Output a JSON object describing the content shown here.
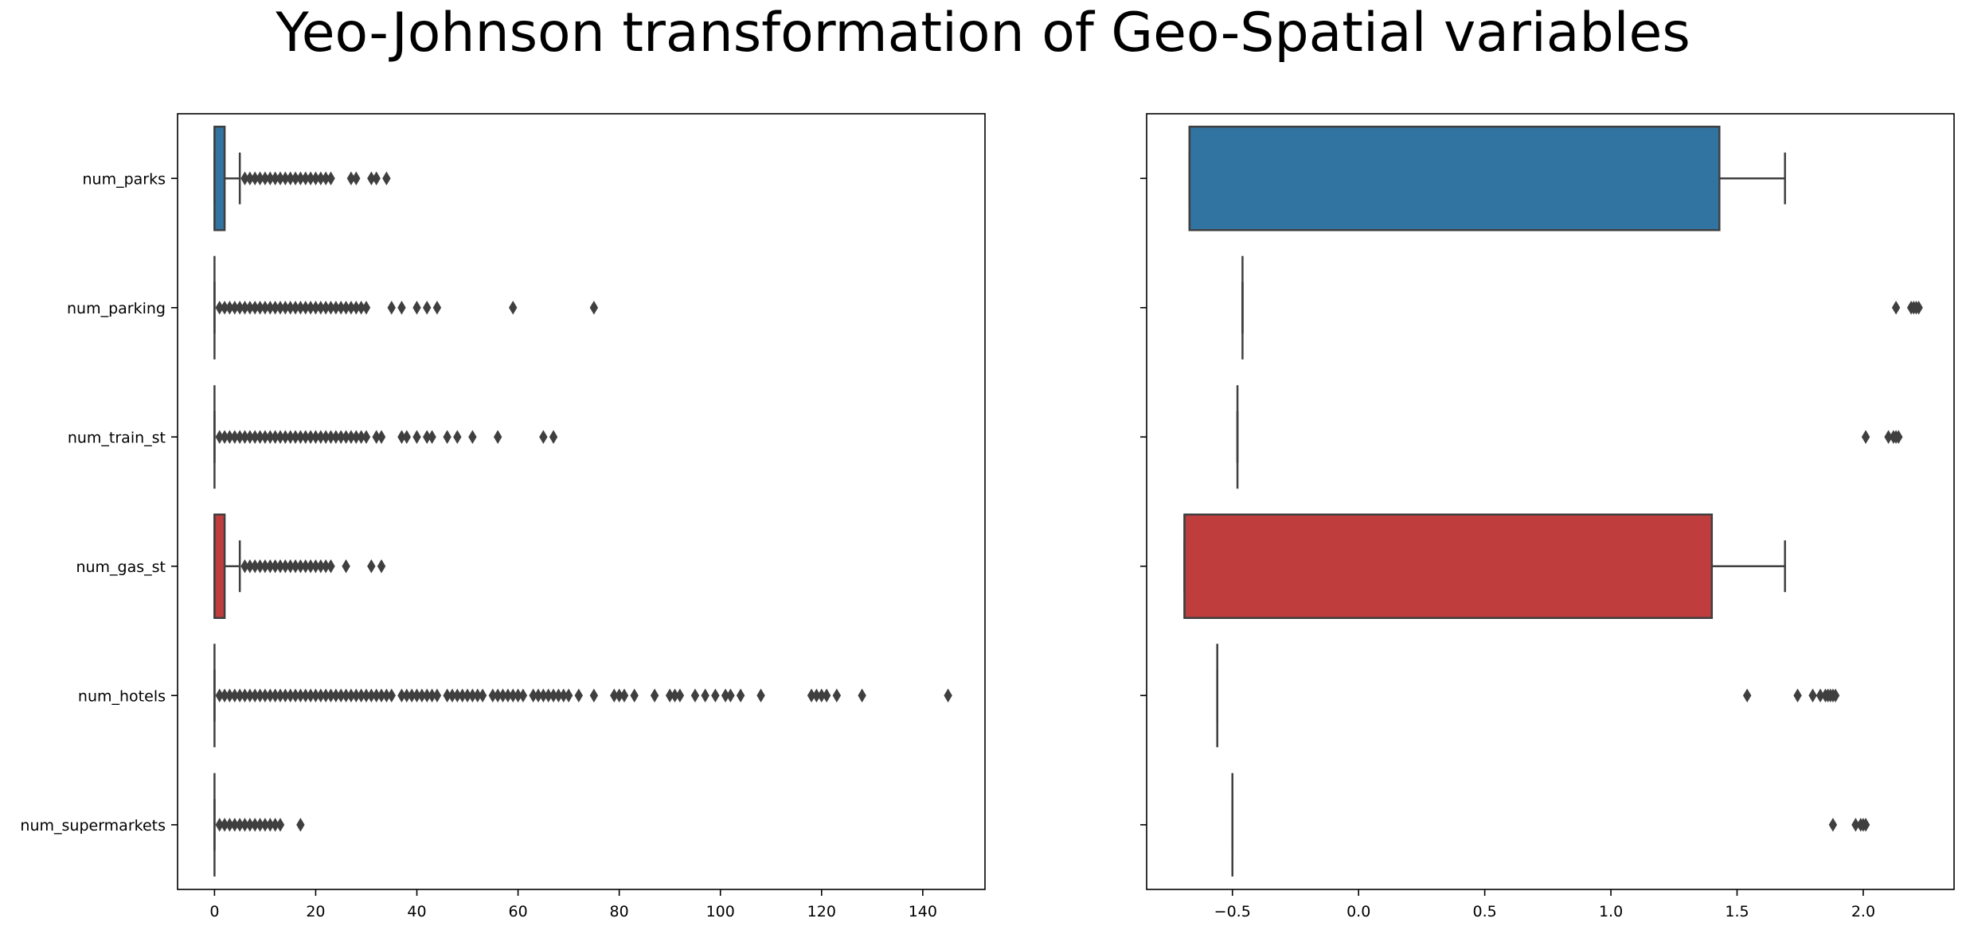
{
  "title": "Yeo-Johnson transformation of Geo-Spatial variables",
  "colors": {
    "num_parks": "#3274a1",
    "num_gas_st": "#c03d3e",
    "line": "#3f3f3f"
  },
  "chart_data": [
    {
      "type": "box",
      "orientation": "horizontal",
      "title": "",
      "xlabel": "",
      "ylabel": "",
      "xlim": [
        -7.3,
        152.3
      ],
      "xticks": [
        0,
        20,
        40,
        60,
        80,
        100,
        120,
        140
      ],
      "xtick_labels": [
        "0",
        "20",
        "40",
        "60",
        "80",
        "100",
        "120",
        "140"
      ],
      "categories": [
        "num_parks",
        "num_parking",
        "num_train_st",
        "num_gas_st",
        "num_hotels",
        "num_supermarkets"
      ],
      "boxes": [
        {
          "category": "num_parks",
          "color": "#3274a1",
          "min": 0,
          "q1": 0,
          "median": 0,
          "q3": 2,
          "max": 5,
          "outliers": [
            6,
            7,
            8,
            9,
            10,
            11,
            12,
            13,
            14,
            15,
            16,
            17,
            18,
            19,
            20,
            21,
            22,
            23,
            27,
            28,
            31,
            32,
            34
          ]
        },
        {
          "category": "num_parking",
          "color": "#3f3f3f",
          "min": 0,
          "q1": 0,
          "median": 0,
          "q3": 0,
          "max": 0,
          "outliers": [
            1,
            2,
            3,
            4,
            5,
            6,
            7,
            8,
            9,
            10,
            11,
            12,
            13,
            14,
            15,
            16,
            17,
            18,
            19,
            20,
            21,
            22,
            23,
            24,
            25,
            26,
            27,
            28,
            29,
            30,
            35,
            37,
            40,
            42,
            44,
            59,
            75
          ]
        },
        {
          "category": "num_train_st",
          "color": "#3f3f3f",
          "min": 0,
          "q1": 0,
          "median": 0,
          "q3": 0,
          "max": 0,
          "outliers": [
            1,
            2,
            3,
            4,
            5,
            6,
            7,
            8,
            9,
            10,
            11,
            12,
            13,
            14,
            15,
            16,
            17,
            18,
            19,
            20,
            21,
            22,
            23,
            24,
            25,
            26,
            27,
            28,
            29,
            30,
            32,
            33,
            37,
            38,
            40,
            42,
            43,
            46,
            48,
            51,
            56,
            65,
            67
          ]
        },
        {
          "category": "num_gas_st",
          "color": "#c03d3e",
          "min": 0,
          "q1": 0,
          "median": 0,
          "q3": 2,
          "max": 5,
          "outliers": [
            6,
            7,
            8,
            9,
            10,
            11,
            12,
            13,
            14,
            15,
            16,
            17,
            18,
            19,
            20,
            21,
            22,
            23,
            26,
            31,
            33
          ]
        },
        {
          "category": "num_hotels",
          "color": "#3f3f3f",
          "min": 0,
          "q1": 0,
          "median": 0,
          "q3": 0,
          "max": 0,
          "outliers": [
            1,
            2,
            3,
            4,
            5,
            6,
            7,
            8,
            9,
            10,
            11,
            12,
            13,
            14,
            15,
            16,
            17,
            18,
            19,
            20,
            21,
            22,
            23,
            24,
            25,
            26,
            27,
            28,
            29,
            30,
            31,
            32,
            33,
            34,
            35,
            37,
            38,
            39,
            40,
            41,
            42,
            43,
            44,
            46,
            47,
            48,
            49,
            50,
            51,
            52,
            53,
            55,
            56,
            57,
            58,
            59,
            60,
            61,
            63,
            64,
            65,
            66,
            67,
            68,
            69,
            70,
            72,
            75,
            79,
            80,
            81,
            83,
            87,
            90,
            91,
            92,
            95,
            97,
            99,
            101,
            102,
            104,
            108,
            118,
            119,
            120,
            121,
            123,
            128,
            145
          ]
        },
        {
          "category": "num_supermarkets",
          "color": "#3f3f3f",
          "min": 0,
          "q1": 0,
          "median": 0,
          "q3": 0,
          "max": 0,
          "outliers": [
            1,
            2,
            3,
            4,
            5,
            6,
            7,
            8,
            9,
            10,
            11,
            12,
            13,
            17
          ]
        }
      ]
    },
    {
      "type": "box",
      "orientation": "horizontal",
      "title": "",
      "xlabel": "",
      "ylabel": "",
      "xlim": [
        -0.84,
        2.36
      ],
      "xticks": [
        -0.5,
        0.0,
        0.5,
        1.0,
        1.5,
        2.0
      ],
      "xtick_labels": [
        "−0.5",
        "0.0",
        "0.5",
        "1.0",
        "1.5",
        "2.0"
      ],
      "categories": [
        "num_parks",
        "num_parking",
        "num_train_st",
        "num_gas_st",
        "num_hotels",
        "num_supermarkets"
      ],
      "show_ytick_labels": false,
      "boxes": [
        {
          "category": "num_parks",
          "color": "#3274a1",
          "min": -0.67,
          "q1": -0.67,
          "median": -0.67,
          "q3": 1.43,
          "max": 1.69,
          "outliers": []
        },
        {
          "category": "num_parking",
          "color": "#3f3f3f",
          "min": -0.46,
          "q1": -0.46,
          "median": -0.46,
          "q3": -0.46,
          "max": -0.46,
          "outliers": [
            2.13,
            2.19,
            2.2,
            2.21,
            2.22
          ]
        },
        {
          "category": "num_train_st",
          "color": "#3f3f3f",
          "min": -0.48,
          "q1": -0.48,
          "median": -0.48,
          "q3": -0.48,
          "max": -0.48,
          "outliers": [
            2.01,
            2.1,
            2.12,
            2.13,
            2.14
          ]
        },
        {
          "category": "num_gas_st",
          "color": "#c03d3e",
          "min": -0.69,
          "q1": -0.69,
          "median": -0.69,
          "q3": 1.4,
          "max": 1.69,
          "outliers": []
        },
        {
          "category": "num_hotels",
          "color": "#3f3f3f",
          "min": -0.56,
          "q1": -0.56,
          "median": -0.56,
          "q3": -0.56,
          "max": -0.56,
          "outliers": [
            1.54,
            1.74,
            1.8,
            1.83,
            1.85,
            1.86,
            1.87,
            1.88,
            1.89
          ]
        },
        {
          "category": "num_supermarkets",
          "color": "#3f3f3f",
          "min": -0.5,
          "q1": -0.5,
          "median": -0.5,
          "q3": -0.5,
          "max": -0.5,
          "outliers": [
            1.88,
            1.97,
            1.99,
            2.0,
            2.01
          ]
        }
      ]
    }
  ]
}
